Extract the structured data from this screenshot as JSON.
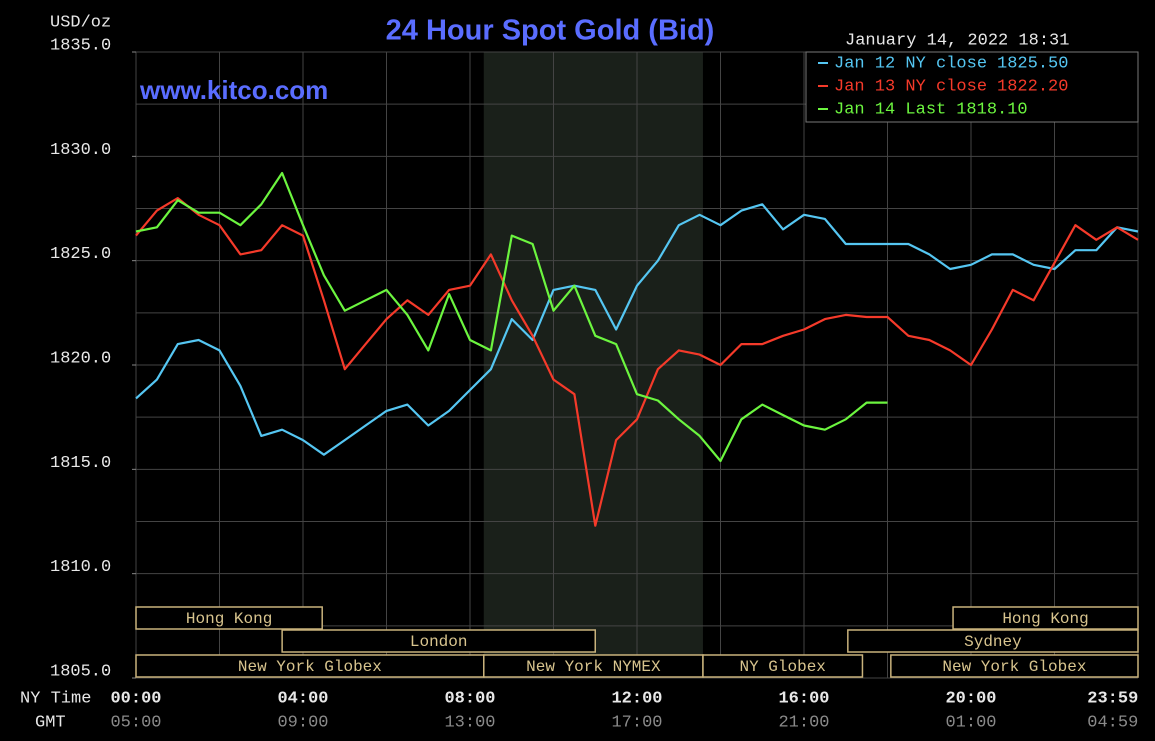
{
  "chart_data": {
    "type": "line",
    "title": "24 Hour Spot Gold (Bid)",
    "watermark": "www.kitco.com",
    "timestamp": "January 14, 2022 18:31",
    "ylabel": "USD/oz",
    "xlabel": "NY Time",
    "x2label": "GMT",
    "xlim": [
      0,
      24
    ],
    "ylim": [
      1805,
      1835
    ],
    "xticks": [
      {
        "value": 0,
        "label": "00:00"
      },
      {
        "value": 4,
        "label": "04:00"
      },
      {
        "value": 8,
        "label": "08:00"
      },
      {
        "value": 12,
        "label": "12:00"
      },
      {
        "value": 16,
        "label": "16:00"
      },
      {
        "value": 20,
        "label": "20:00"
      },
      {
        "value": 23.983,
        "label": "23:59"
      }
    ],
    "x2ticks": [
      {
        "value": 0,
        "label": "05:00"
      },
      {
        "value": 4,
        "label": "09:00"
      },
      {
        "value": 8,
        "label": "13:00"
      },
      {
        "value": 12,
        "label": "17:00"
      },
      {
        "value": 16,
        "label": "21:00"
      },
      {
        "value": 20,
        "label": "01:00"
      },
      {
        "value": 23.983,
        "label": "04:59"
      }
    ],
    "yticks": [
      {
        "value": 1805,
        "label": "1805.0"
      },
      {
        "value": 1810,
        "label": "1810.0"
      },
      {
        "value": 1815,
        "label": "1815.0"
      },
      {
        "value": 1820,
        "label": "1820.0"
      },
      {
        "value": 1825,
        "label": "1825.0"
      },
      {
        "value": 1830,
        "label": "1830.0"
      },
      {
        "value": 1835,
        "label": "1835.0"
      }
    ],
    "xgrid": [
      0,
      2,
      4,
      6,
      8,
      10,
      12,
      14,
      16,
      18,
      20,
      22,
      24
    ],
    "ygrid": [
      1805,
      1807.5,
      1810,
      1812.5,
      1815,
      1817.5,
      1820,
      1822.5,
      1825,
      1827.5,
      1830,
      1832.5,
      1835
    ],
    "highlight_range": [
      8.33,
      13.58
    ],
    "sessions": [
      [
        {
          "label": "Hong Kong",
          "start": 0,
          "end": 4.46
        },
        {
          "label": "Hong Kong",
          "start": 19.57,
          "end": 24
        }
      ],
      [
        {
          "label": "London",
          "start": 3.5,
          "end": 11.0
        },
        {
          "label": "Sydney",
          "start": 17.05,
          "end": 24
        }
      ],
      [
        {
          "label": "New York Globex",
          "start": 0,
          "end": 8.33
        },
        {
          "label": "New York NYMEX",
          "start": 8.33,
          "end": 13.58
        },
        {
          "label": "NY Globex",
          "start": 13.58,
          "end": 17.4
        },
        {
          "label": "New York Globex",
          "start": 18.08,
          "end": 24
        }
      ]
    ],
    "x": [
      0,
      0.5,
      1,
      1.5,
      2,
      2.5,
      3,
      3.5,
      4,
      4.5,
      5,
      5.5,
      6,
      6.5,
      7,
      7.5,
      8,
      8.5,
      9,
      9.5,
      10,
      10.5,
      11,
      11.5,
      12,
      12.5,
      13,
      13.5,
      14,
      14.5,
      15,
      15.5,
      16,
      16.5,
      17,
      17.5,
      18,
      18.5,
      19,
      19.5,
      20,
      20.5,
      21,
      21.5,
      22,
      22.5,
      23,
      23.5,
      24
    ],
    "series": [
      {
        "name": "Jan 12 NY close",
        "close": {
          "value": 1825.5,
          "label": "1825.50"
        },
        "color": "#55c6f2",
        "values": [
          1818.4,
          1819.3,
          1821.0,
          1821.2,
          1820.7,
          1819.0,
          1816.6,
          1816.9,
          1816.4,
          1815.7,
          1816.4,
          1817.1,
          1817.8,
          1818.1,
          1817.1,
          1817.8,
          1818.8,
          1819.8,
          1822.2,
          1821.2,
          1823.6,
          1823.8,
          1823.6,
          1821.7,
          1823.8,
          1825.0,
          1826.7,
          1827.2,
          1826.7,
          1827.4,
          1827.7,
          1826.5,
          1827.2,
          1827.0,
          1825.8,
          1825.8,
          1825.8,
          1825.8,
          1825.3,
          1824.6,
          1824.8,
          1825.3,
          1825.3,
          1824.8,
          1824.6,
          1825.5,
          1825.5,
          1826.6,
          1826.4
        ]
      },
      {
        "name": "Jan 13 NY close",
        "close": {
          "value": 1822.2,
          "label": "1822.20"
        },
        "color": "#f53a2a",
        "values": [
          1826.2,
          1827.4,
          1828.0,
          1827.2,
          1826.7,
          1825.3,
          1825.5,
          1826.7,
          1826.2,
          1823.1,
          1819.8,
          1821.0,
          1822.2,
          1823.1,
          1822.4,
          1823.6,
          1823.8,
          1825.3,
          1823.1,
          1821.4,
          1819.3,
          1818.6,
          1812.3,
          1816.4,
          1817.4,
          1819.8,
          1820.7,
          1820.5,
          1820.0,
          1821.0,
          1821.0,
          1821.4,
          1821.7,
          1822.2,
          1822.4,
          1822.3,
          1822.3,
          1821.4,
          1821.2,
          1820.7,
          1820.0,
          1821.7,
          1823.6,
          1823.1,
          1824.9,
          1826.7,
          1826.0,
          1826.6,
          1826.0
        ]
      },
      {
        "name": "Jan 14 Last",
        "close": {
          "value": 1818.1,
          "label": "1818.10"
        },
        "color": "#6cf53f",
        "values": [
          1826.4,
          1826.6,
          1827.9,
          1827.3,
          1827.3,
          1826.7,
          1827.7,
          1829.2,
          1826.7,
          1824.3,
          1822.6,
          1823.1,
          1823.6,
          1822.4,
          1820.7,
          1823.4,
          1821.2,
          1820.7,
          1826.2,
          1825.8,
          1822.6,
          1823.8,
          1821.4,
          1821.0,
          1818.6,
          1818.3,
          1817.4,
          1816.6,
          1815.4,
          1817.4,
          1818.1,
          1817.6,
          1817.1,
          1816.9,
          1817.4,
          1818.2,
          1818.2,
          null,
          null,
          null,
          null,
          null,
          null,
          null,
          null,
          null,
          null,
          null,
          null
        ]
      }
    ]
  }
}
